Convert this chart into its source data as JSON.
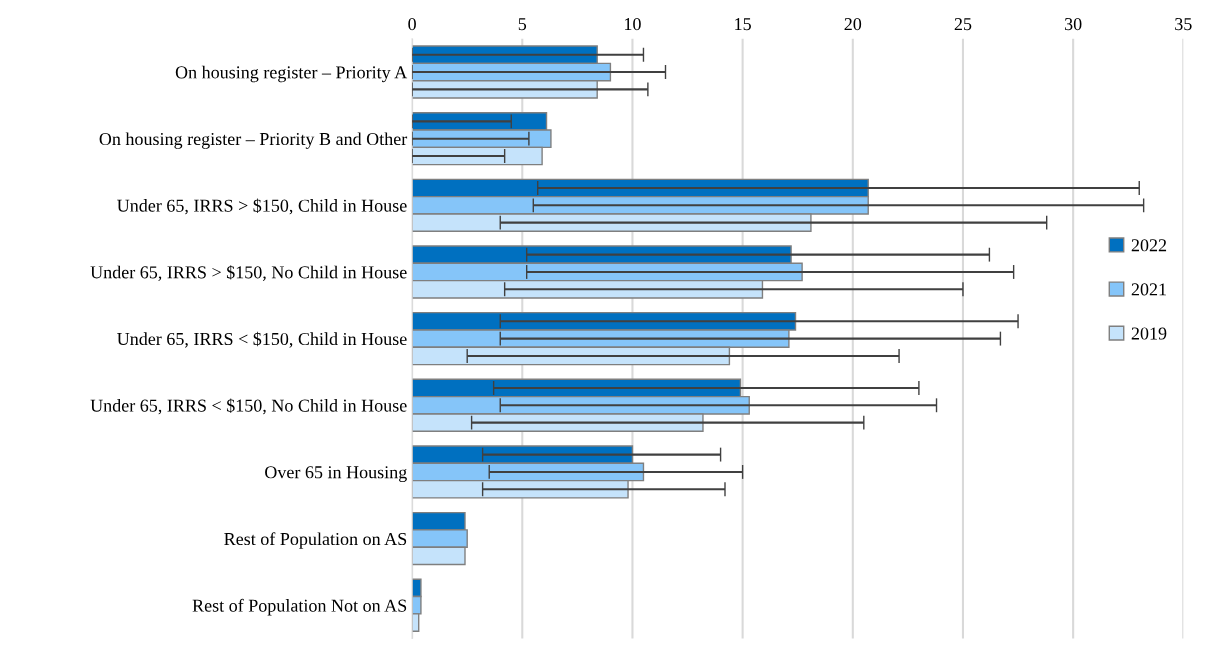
{
  "chart_data": {
    "type": "bar",
    "orientation": "horizontal",
    "categories": [
      "On housing register – Priority A",
      "On housing register – Priority B and Other",
      "Under 65, IRRS > $150, Child in House",
      "Under 65, IRRS > $150, No Child in House",
      "Under 65, IRRS < $150, Child in House",
      "Under 65, IRRS < $150, No Child in House",
      "Over 65 in Housing",
      "Rest of Population on AS",
      "Rest of Population Not on AS"
    ],
    "series": [
      {
        "name": "2022",
        "color": "#0070c0",
        "values": [
          8.4,
          6.1,
          20.7,
          17.2,
          17.4,
          14.9,
          10.0,
          2.4,
          0.4
        ],
        "errors": [
          [
            0,
            10.5
          ],
          [
            0,
            4.5
          ],
          [
            5.7,
            33.0
          ],
          [
            5.2,
            26.2
          ],
          [
            4.0,
            27.5
          ],
          [
            3.7,
            23.0
          ],
          [
            3.2,
            14.0
          ],
          null,
          null
        ]
      },
      {
        "name": "2021",
        "color": "#85c5f9",
        "values": [
          9.0,
          6.3,
          20.7,
          17.7,
          17.1,
          15.3,
          10.5,
          2.5,
          0.4
        ],
        "errors": [
          [
            0,
            11.5
          ],
          [
            0,
            5.3
          ],
          [
            5.5,
            33.2
          ],
          [
            5.2,
            27.3
          ],
          [
            4.0,
            26.7
          ],
          [
            4.0,
            23.8
          ],
          [
            3.5,
            15.0
          ],
          null,
          null
        ]
      },
      {
        "name": "2019",
        "color": "#c5e3fb",
        "values": [
          8.4,
          5.9,
          18.1,
          15.9,
          14.4,
          13.2,
          9.8,
          2.4,
          0.3
        ],
        "errors": [
          [
            0,
            10.7
          ],
          [
            0,
            4.2
          ],
          [
            4.0,
            28.8
          ],
          [
            4.2,
            25.0
          ],
          [
            2.5,
            22.1
          ],
          [
            2.7,
            20.5
          ],
          [
            3.2,
            14.2
          ],
          null,
          null
        ]
      }
    ],
    "xlim": [
      0,
      35
    ],
    "xticks": [
      0,
      5,
      10,
      15,
      20,
      25,
      30,
      35
    ],
    "grid": "x",
    "legend": "right"
  }
}
